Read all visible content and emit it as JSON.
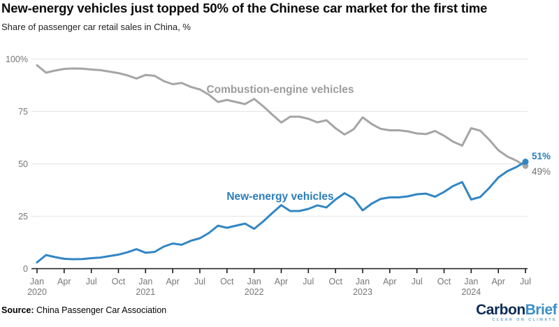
{
  "title": "New-energy vehicles just topped 50% of the Chinese car market for the first time",
  "subtitle": "Share of passenger car retail sales in China, %",
  "source": {
    "label": "Source:",
    "text": " China Passenger Car Association"
  },
  "logo": {
    "part1": "Carbon",
    "part2": "Brief",
    "tagline": "CLEAR ON CLIMATE"
  },
  "chart_data": {
    "type": "line",
    "title": "New-energy vehicles just topped 50% of the Chinese car market for the first time",
    "subtitle": "Share of passenger car retail sales in China, %",
    "x_monthly_from": "2020-01",
    "x_monthly_to": "2024-07",
    "x_tick_labels": [
      "Jan",
      "Apr",
      "Jul",
      "Oct",
      "Jan",
      "Apr",
      "Jul",
      "Oct",
      "Jan",
      "Apr",
      "Jul",
      "Oct",
      "Jan",
      "Apr",
      "Jul",
      "Oct",
      "Jan",
      "Apr",
      "Jul"
    ],
    "x_year_labels": [
      {
        "label": "2020",
        "month_index": 0
      },
      {
        "label": "2021",
        "month_index": 12
      },
      {
        "label": "2022",
        "month_index": 24
      },
      {
        "label": "2023",
        "month_index": 36
      },
      {
        "label": "2024",
        "month_index": 48
      }
    ],
    "y_ticks": [
      0,
      25,
      50,
      75,
      100
    ],
    "y_tick_labels": [
      "0",
      "25",
      "50",
      "75",
      "100%"
    ],
    "ylim": [
      0,
      100
    ],
    "grid": "horizontal",
    "legend_position": "inline-labels",
    "colors": {
      "grid": "#e4e4e4",
      "axis": "#1a1a1a",
      "axis_text": "#767676"
    },
    "series": [
      {
        "name": "Combustion-engine vehicles",
        "line_name": "combustion-line",
        "color": "#a5a5a5",
        "label_color": "#9c9c9c",
        "end_label": "49%",
        "end_label_color": "#6f6f6f",
        "end_label_bold": false,
        "values": [
          97.0,
          93.5,
          94.5,
          95.3,
          95.5,
          95.4,
          95.0,
          94.7,
          94.0,
          93.3,
          92.2,
          90.7,
          92.4,
          92.0,
          89.5,
          88.0,
          88.6,
          86.7,
          85.5,
          83.0,
          79.5,
          80.5,
          79.5,
          78.5,
          81.0,
          77.5,
          73.5,
          69.7,
          72.5,
          72.5,
          71.5,
          69.8,
          70.8,
          67.0,
          64.0,
          66.5,
          72.2,
          69.0,
          66.7,
          66.0,
          66.0,
          65.5,
          64.5,
          64.2,
          65.7,
          63.4,
          60.6,
          58.7,
          67.0,
          65.8,
          61.5,
          56.5,
          53.5,
          51.5,
          49.0
        ]
      },
      {
        "name": "New-energy vehicles",
        "line_name": "nev-line",
        "color": "#3286c3",
        "label_color": "#2b7db9",
        "end_label": "51%",
        "end_label_color": "#2b7db9",
        "end_label_bold": true,
        "values": [
          3.0,
          6.5,
          5.5,
          4.7,
          4.5,
          4.6,
          5.0,
          5.3,
          6.0,
          6.7,
          7.8,
          9.3,
          7.6,
          8.0,
          10.5,
          12.0,
          11.4,
          13.3,
          14.5,
          17.0,
          20.5,
          19.5,
          20.5,
          21.5,
          19.0,
          22.5,
          26.5,
          30.3,
          27.5,
          27.5,
          28.5,
          30.2,
          29.2,
          33.0,
          36.0,
          33.5,
          27.8,
          31.0,
          33.3,
          34.0,
          34.0,
          34.5,
          35.5,
          35.8,
          34.3,
          36.6,
          39.4,
          41.3,
          33.0,
          34.2,
          38.5,
          43.5,
          46.5,
          48.5,
          51.0
        ]
      }
    ]
  }
}
